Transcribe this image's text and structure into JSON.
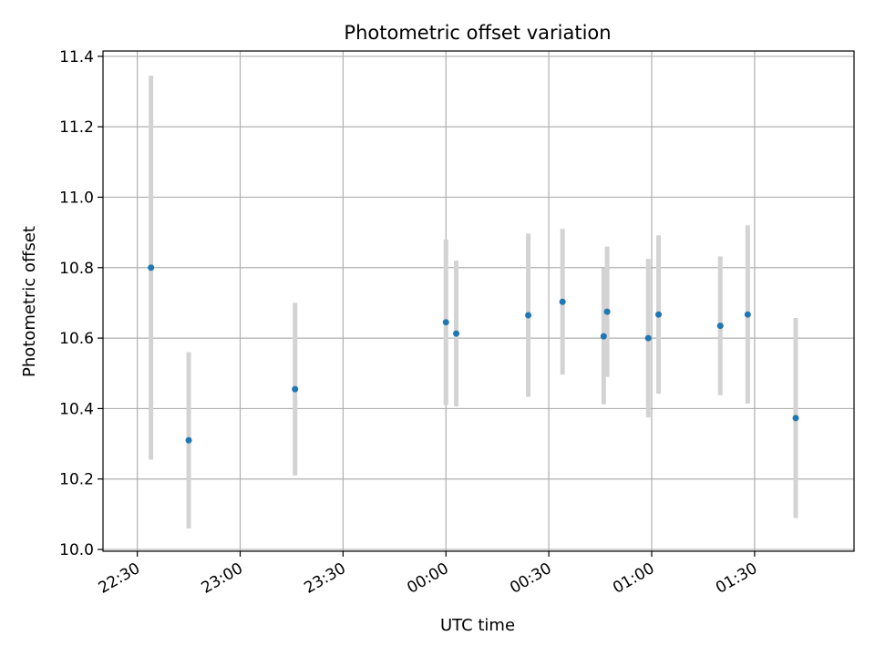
{
  "chart_data": {
    "type": "scatter",
    "title": "Photometric offset variation",
    "xlabel": "UTC time",
    "ylabel": "Photometric offset",
    "x_range": [
      "22:20",
      "01:59"
    ],
    "ylim": [
      9.995,
      11.415
    ],
    "xticks": [
      "22:30",
      "23:00",
      "23:30",
      "00:00",
      "00:30",
      "01:00",
      "01:30"
    ],
    "yticks": [
      "10.0",
      "10.2",
      "10.4",
      "10.6",
      "10.8",
      "11.0",
      "11.2",
      "11.4"
    ],
    "grid": true,
    "colors": {
      "point": "#1f77b4",
      "errorbar": "#d3d3d3",
      "grid": "#b0b0b0"
    },
    "points": [
      {
        "x": "22:34",
        "y": 10.8,
        "yerr": 0.545
      },
      {
        "x": "22:45",
        "y": 10.31,
        "yerr": 0.25
      },
      {
        "x": "23:16",
        "y": 10.455,
        "yerr": 0.245
      },
      {
        "x": "00:00",
        "y": 10.645,
        "yerr": 0.235
      },
      {
        "x": "00:03",
        "y": 10.613,
        "yerr": 0.207
      },
      {
        "x": "00:24",
        "y": 10.665,
        "yerr": 0.232
      },
      {
        "x": "00:34",
        "y": 10.703,
        "yerr": 0.207
      },
      {
        "x": "00:46",
        "y": 10.605,
        "yerr": 0.193
      },
      {
        "x": "00:47",
        "y": 10.675,
        "yerr": 0.185
      },
      {
        "x": "00:59",
        "y": 10.6,
        "yerr": 0.225
      },
      {
        "x": "01:02",
        "y": 10.667,
        "yerr": 0.225
      },
      {
        "x": "01:20",
        "y": 10.635,
        "yerr": 0.197
      },
      {
        "x": "01:28",
        "y": 10.667,
        "yerr": 0.253
      },
      {
        "x": "01:42",
        "y": 10.373,
        "yerr": 0.284
      }
    ]
  }
}
